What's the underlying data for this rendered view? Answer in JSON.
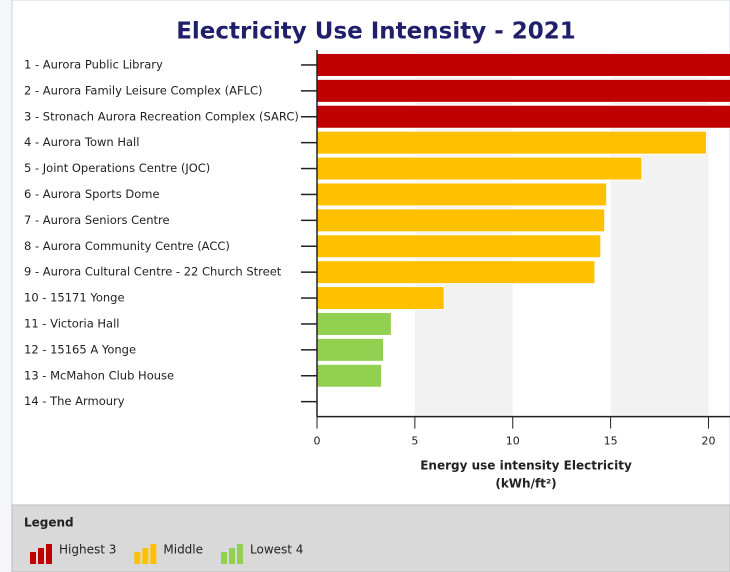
{
  "chart_data": {
    "type": "hbar",
    "title": "Electricity Use Intensity - 2021",
    "x_label": [
      "Energy use intensity Electricity",
      "(kWh/ft²)"
    ],
    "categories": [
      "1 - Aurora Public Library",
      "2 - Aurora Family Leisure Complex (AFLC)",
      "3 - Stronach Aurora Recreation Complex (SARC)",
      "4 - Aurora Town Hall",
      "5 - Joint Operations Centre (JOC)",
      "6 - Aurora Sports Dome",
      "7 - Aurora Seniors Centre",
      "8 - Aurora Community Centre (ACC)",
      "9 - Aurora Cultural Centre -  22 Church Street",
      "10 - 15171 Yonge",
      "11 - Victoria Hall",
      "12 - 15165 A Yonge",
      "13 - McMahon Club House",
      "14 - The Armoury"
    ],
    "values": [
      22,
      22,
      22,
      19.9,
      16.6,
      14.8,
      14.7,
      14.5,
      14.2,
      6.5,
      3.8,
      3.4,
      3.3,
      0
    ],
    "colors": [
      "#c00000",
      "#c00000",
      "#c00000",
      "#ffc000",
      "#ffc000",
      "#ffc000",
      "#ffc000",
      "#ffc000",
      "#ffc000",
      "#ffc000",
      "#92d050",
      "#92d050",
      "#92d050",
      "#92d050"
    ],
    "xlim": [
      0,
      21.1
    ],
    "xticks": [
      0,
      5,
      10,
      15,
      20
    ],
    "legend_title": "Legend",
    "legend": [
      {
        "label": "Highest 3",
        "color": "#c00000"
      },
      {
        "label": "Middle",
        "color": "#ffc000"
      },
      {
        "label": "Lowest 4",
        "color": "#92d050"
      }
    ]
  }
}
